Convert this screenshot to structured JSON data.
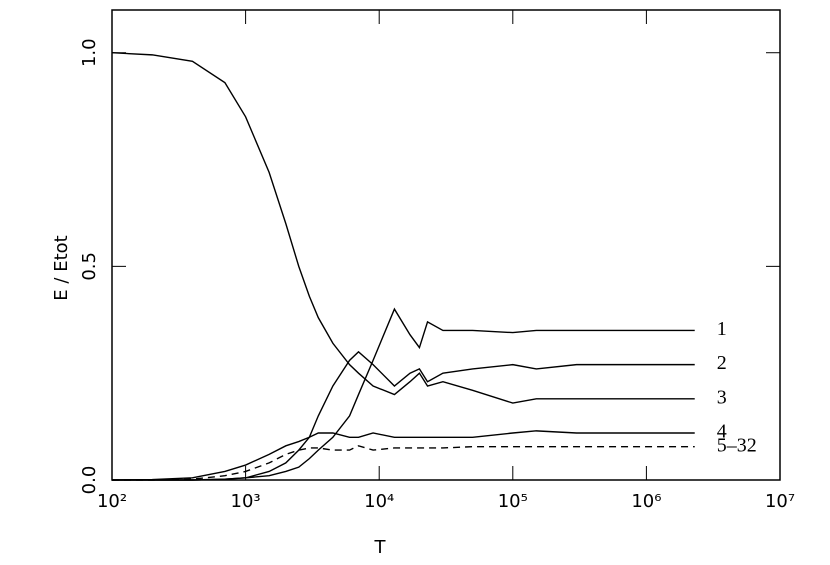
{
  "chart_data": {
    "type": "line",
    "x_label": "T",
    "y_label": "E / Etot",
    "xscale": "log",
    "x": [
      100,
      200,
      400,
      700,
      1000,
      1500,
      2000,
      2500,
      3000,
      3500,
      4500,
      6000,
      7000,
      9000,
      13000,
      17000,
      20000,
      23000,
      30000,
      50000,
      100000,
      150000,
      300000,
      1000000,
      2300000
    ],
    "series": [
      {
        "name": "1",
        "color": "#000000",
        "dashed": false,
        "values": [
          0,
          0,
          0,
          0.002,
          0.005,
          0.01,
          0.02,
          0.03,
          0.05,
          0.07,
          0.1,
          0.15,
          0.2,
          0.28,
          0.4,
          0.34,
          0.31,
          0.37,
          0.35,
          0.35,
          0.345,
          0.35,
          0.35,
          0.35,
          0.35
        ]
      },
      {
        "name": "2",
        "color": "#000000",
        "dashed": false,
        "values": [
          0,
          0,
          0,
          0.002,
          0.005,
          0.02,
          0.04,
          0.07,
          0.1,
          0.15,
          0.22,
          0.28,
          0.3,
          0.27,
          0.22,
          0.25,
          0.26,
          0.23,
          0.25,
          0.26,
          0.27,
          0.26,
          0.27,
          0.27,
          0.27
        ]
      },
      {
        "name": "3",
        "color": "#000000",
        "dashed": false,
        "values": [
          1.0,
          0.995,
          0.98,
          0.93,
          0.85,
          0.72,
          0.6,
          0.5,
          0.43,
          0.38,
          0.32,
          0.27,
          0.25,
          0.22,
          0.2,
          0.23,
          0.25,
          0.22,
          0.23,
          0.21,
          0.18,
          0.19,
          0.19,
          0.19,
          0.19
        ]
      },
      {
        "name": "4",
        "color": "#000000",
        "dashed": false,
        "values": [
          0,
          0.001,
          0.005,
          0.02,
          0.035,
          0.06,
          0.08,
          0.09,
          0.1,
          0.11,
          0.11,
          0.1,
          0.1,
          0.11,
          0.1,
          0.1,
          0.1,
          0.1,
          0.1,
          0.1,
          0.11,
          0.115,
          0.11,
          0.11,
          0.11
        ]
      },
      {
        "name": "5–32",
        "color": "#000000",
        "dashed": true,
        "values": [
          0,
          0,
          0.002,
          0.01,
          0.02,
          0.04,
          0.06,
          0.07,
          0.075,
          0.075,
          0.07,
          0.07,
          0.08,
          0.07,
          0.075,
          0.075,
          0.075,
          0.075,
          0.075,
          0.078,
          0.078,
          0.078,
          0.078,
          0.078,
          0.078
        ]
      }
    ],
    "xlim": [
      100,
      10000000
    ],
    "xticks": [
      {
        "value": 100,
        "label": "10²"
      },
      {
        "value": 1000,
        "label": "10³"
      },
      {
        "value": 10000,
        "label": "10⁴"
      },
      {
        "value": 100000,
        "label": "10⁵"
      },
      {
        "value": 1000000,
        "label": "10⁶"
      },
      {
        "value": 10000000,
        "label": "10⁷"
      }
    ],
    "ylim": [
      0,
      1.1
    ],
    "yticks": [
      {
        "value": 0,
        "label": "0.0"
      },
      {
        "value": 0.5,
        "label": "0.5"
      },
      {
        "value": 1,
        "label": "1.0"
      }
    ]
  }
}
